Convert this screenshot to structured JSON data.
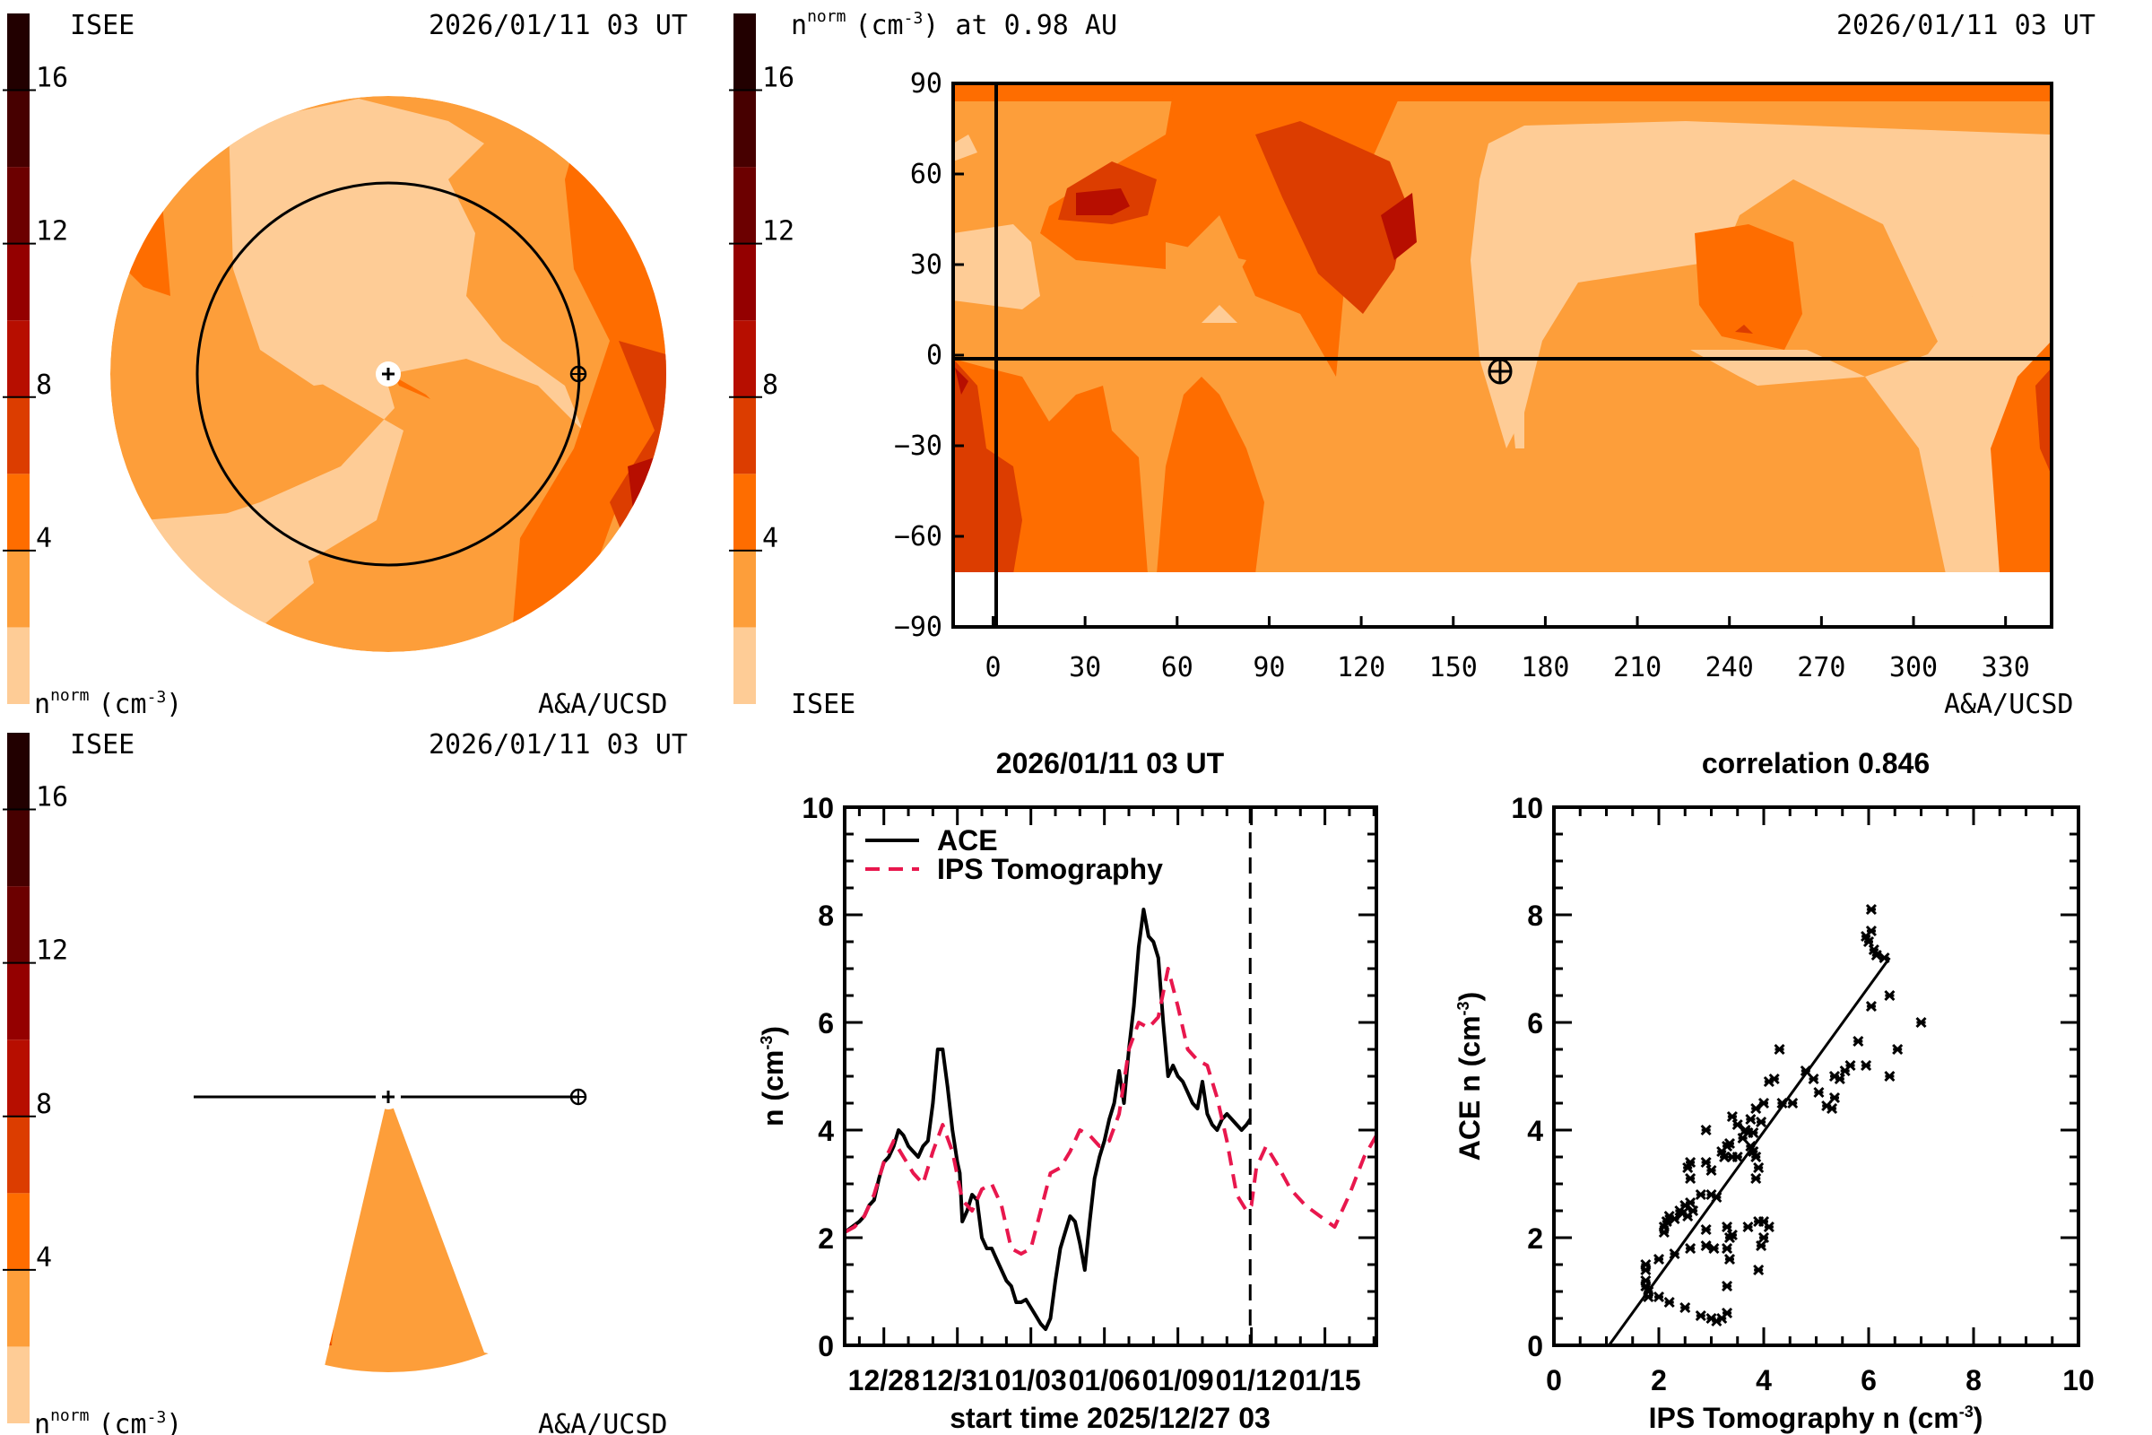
{
  "colorbar": {
    "levels": [
      0,
      2,
      4,
      6,
      8,
      10,
      12,
      14,
      16,
      18
    ],
    "colors": [
      "#fecc96",
      "#fd9e3a",
      "#fe6d00",
      "#dc3d00",
      "#b70e00",
      "#940000",
      "#6c0000",
      "#470000",
      "#220000"
    ],
    "tick_labels": [
      "4",
      "8",
      "12",
      "16"
    ],
    "tick_values": [
      4,
      8,
      12,
      16
    ],
    "range": [
      0,
      18
    ]
  },
  "panel_top_left": {
    "org": "ISEE",
    "timestamp": "2026/01/11 03 UT",
    "unit_label": "n",
    "unit_sup": "norm",
    "unit_rest": "(cm",
    "unit_exp": "-3",
    "credit": "A&A/UCSD"
  },
  "panel_top_right": {
    "title": "n",
    "title_sup": "norm",
    "title_rest": "(cm",
    "title_exp": "-3",
    "title_end": ") at 0.98 AU",
    "timestamp": "2026/01/11 03 UT",
    "org": "ISEE",
    "credit": "A&A/UCSD",
    "x_ticks": [
      "0",
      "30",
      "60",
      "90",
      "120",
      "150",
      "180",
      "210",
      "240",
      "270",
      "300",
      "330"
    ],
    "x_tick_values": [
      0,
      30,
      60,
      90,
      120,
      150,
      180,
      210,
      240,
      270,
      300,
      330
    ],
    "y_ticks": [
      "90",
      "60",
      "30",
      "0",
      "−30",
      "−60",
      "−90"
    ],
    "y_tick_values": [
      90,
      60,
      30,
      0,
      -30,
      -60,
      -90
    ],
    "x_range": [
      -13,
      345
    ],
    "y_range": [
      -90,
      90
    ],
    "data_lat_min": -70,
    "earth_position": {
      "lon": 165,
      "lat": -4
    }
  },
  "panel_bottom_left": {
    "org": "ISEE",
    "timestamp": "2026/01/11 03 UT",
    "unit_label": "n",
    "unit_sup": "norm",
    "unit_rest": "(cm",
    "unit_exp": "-3",
    "credit": "A&A/UCSD"
  },
  "chart_data": [
    {
      "type": "line",
      "title": "2026/01/11 03 UT",
      "xlabel": "start time 2025/12/27 03",
      "ylabel": "n (cm",
      "ylabel_exp": "-3",
      "ylabel_end": ")",
      "x_unit": "days since 12/28 00 UT",
      "x_range": [
        -1.6,
        20.1
      ],
      "ylim": [
        0,
        10
      ],
      "x_ticks": [
        "12/28",
        "12/31",
        "01/03",
        "01/06",
        "01/09",
        "01/12",
        "01/15"
      ],
      "x_tick_values": [
        0,
        3,
        6,
        9,
        12,
        15,
        18
      ],
      "y_ticks": [
        "0",
        "2",
        "4",
        "6",
        "8",
        "10"
      ],
      "y_tick_values": [
        0,
        2,
        4,
        6,
        8,
        10
      ],
      "current_time_marker": 14.95,
      "legend": [
        "ACE",
        "IPS Tomography"
      ],
      "legend_position": "top-left",
      "series": [
        {
          "name": "ACE",
          "color": "#000000",
          "style": "solid",
          "x": [
            -1.6,
            -1.3,
            -1.0,
            -0.8,
            -0.6,
            -0.4,
            -0.2,
            0.0,
            0.2,
            0.4,
            0.6,
            0.8,
            1.0,
            1.2,
            1.4,
            1.6,
            1.8,
            2.0,
            2.2,
            2.4,
            2.6,
            2.8,
            3.0,
            3.1,
            3.2,
            3.4,
            3.6,
            3.8,
            4.0,
            4.2,
            4.4,
            4.6,
            4.8,
            5.0,
            5.2,
            5.4,
            5.6,
            5.8,
            6.0,
            6.2,
            6.4,
            6.6,
            6.8,
            7.0,
            7.2,
            7.4,
            7.6,
            7.8,
            8.0,
            8.2,
            8.4,
            8.6,
            8.8,
            9.0,
            9.2,
            9.4,
            9.6,
            9.8,
            10.0,
            10.2,
            10.4,
            10.6,
            10.8,
            11.0,
            11.2,
            11.4,
            11.6,
            11.8,
            12.0,
            12.2,
            12.4,
            12.6,
            12.8,
            13.0,
            13.2,
            13.4,
            13.6,
            13.8,
            14.0,
            14.2,
            14.4,
            14.6,
            14.8,
            14.95
          ],
          "y": [
            2.1,
            2.2,
            2.3,
            2.4,
            2.6,
            2.7,
            3.1,
            3.4,
            3.5,
            3.7,
            4.0,
            3.9,
            3.7,
            3.6,
            3.5,
            3.7,
            3.8,
            4.5,
            5.5,
            5.5,
            4.8,
            4.0,
            3.4,
            3.2,
            2.3,
            2.5,
            2.8,
            2.7,
            2.0,
            1.8,
            1.8,
            1.6,
            1.4,
            1.2,
            1.1,
            0.8,
            0.8,
            0.85,
            0.7,
            0.55,
            0.4,
            0.3,
            0.5,
            1.2,
            1.8,
            2.1,
            2.4,
            2.3,
            1.9,
            1.4,
            2.3,
            3.1,
            3.5,
            3.8,
            4.2,
            4.5,
            5.1,
            4.5,
            5.5,
            6.3,
            7.4,
            8.1,
            7.6,
            7.5,
            7.2,
            6.0,
            5.0,
            5.2,
            5.0,
            4.9,
            4.7,
            4.5,
            4.4,
            4.9,
            4.3,
            4.1,
            4.0,
            4.2,
            4.3,
            4.2,
            4.1,
            4.0,
            4.1,
            4.2
          ]
        },
        {
          "name": "IPS Tomography",
          "color": "#e8174d",
          "style": "dashed",
          "x": [
            -1.6,
            -1.2,
            -0.8,
            -0.4,
            0.0,
            0.4,
            0.8,
            1.2,
            1.6,
            2.0,
            2.4,
            2.8,
            3.2,
            3.6,
            4.0,
            4.4,
            4.8,
            5.2,
            5.6,
            6.0,
            6.4,
            6.8,
            7.2,
            7.6,
            8.0,
            8.4,
            8.8,
            9.2,
            9.6,
            10.0,
            10.4,
            10.8,
            11.2,
            11.6,
            12.0,
            12.4,
            12.8,
            13.2,
            13.6,
            14.0,
            14.4,
            14.8,
            15.0,
            15.2,
            15.6,
            16.0,
            16.6,
            17.2,
            17.8,
            18.4,
            19.0,
            19.6,
            20.1
          ],
          "y": [
            2.1,
            2.2,
            2.4,
            2.8,
            3.4,
            3.8,
            3.5,
            3.2,
            3.0,
            3.6,
            4.1,
            3.6,
            2.7,
            2.5,
            2.9,
            3.0,
            2.6,
            1.8,
            1.7,
            1.8,
            2.5,
            3.2,
            3.3,
            3.6,
            4.0,
            3.9,
            3.7,
            3.8,
            4.3,
            5.5,
            6.0,
            5.9,
            6.1,
            7.0,
            6.3,
            5.5,
            5.3,
            5.2,
            4.6,
            3.8,
            2.8,
            2.5,
            2.6,
            3.3,
            3.7,
            3.4,
            2.9,
            2.6,
            2.4,
            2.2,
            2.8,
            3.5,
            3.9
          ]
        }
      ]
    },
    {
      "type": "scatter",
      "title": "correlation 0.846",
      "xlabel": "IPS Tomography n (cm",
      "xlabel_exp": "-3",
      "xlabel_end": ")",
      "ylabel": "ACE n (cm",
      "ylabel_exp": "-3",
      "ylabel_end": ")",
      "xlim": [
        0,
        10
      ],
      "ylim": [
        0,
        10
      ],
      "x_ticks": [
        "0",
        "2",
        "4",
        "6",
        "8",
        "10"
      ],
      "y_ticks": [
        "0",
        "2",
        "4",
        "6",
        "8",
        "10"
      ],
      "tick_values": [
        0,
        2,
        4,
        6,
        8,
        10
      ],
      "marker": "x",
      "fit_line": {
        "x": [
          1.05,
          6.4
        ],
        "y": [
          0.0,
          7.2
        ]
      },
      "points": [
        [
          1.75,
          1.5
        ],
        [
          1.75,
          1.4
        ],
        [
          1.75,
          1.2
        ],
        [
          1.75,
          1.1
        ],
        [
          1.8,
          1.0
        ],
        [
          1.8,
          0.9
        ],
        [
          2.0,
          0.9
        ],
        [
          2.2,
          0.8
        ],
        [
          2.5,
          0.7
        ],
        [
          2.8,
          0.55
        ],
        [
          3.0,
          0.5
        ],
        [
          3.1,
          0.45
        ],
        [
          3.2,
          0.5
        ],
        [
          3.3,
          0.6
        ],
        [
          2.0,
          1.6
        ],
        [
          2.3,
          1.7
        ],
        [
          2.6,
          1.8
        ],
        [
          2.9,
          1.85
        ],
        [
          3.05,
          1.8
        ],
        [
          3.3,
          1.8
        ],
        [
          3.35,
          2.0
        ],
        [
          3.4,
          2.05
        ],
        [
          3.3,
          2.2
        ],
        [
          3.35,
          1.6
        ],
        [
          3.3,
          1.1
        ],
        [
          2.9,
          2.15
        ],
        [
          3.7,
          2.2
        ],
        [
          3.9,
          2.3
        ],
        [
          4.0,
          2.3
        ],
        [
          4.1,
          2.2
        ],
        [
          4.0,
          2.0
        ],
        [
          3.95,
          1.85
        ],
        [
          3.9,
          1.4
        ],
        [
          2.1,
          2.1
        ],
        [
          2.1,
          2.2
        ],
        [
          2.15,
          2.3
        ],
        [
          2.2,
          2.4
        ],
        [
          2.4,
          2.5
        ],
        [
          2.5,
          2.6
        ],
        [
          2.6,
          2.65
        ],
        [
          2.65,
          2.5
        ],
        [
          2.55,
          2.4
        ],
        [
          2.45,
          2.45
        ],
        [
          2.3,
          2.35
        ],
        [
          2.8,
          2.8
        ],
        [
          3.0,
          2.8
        ],
        [
          3.1,
          2.75
        ],
        [
          2.6,
          3.1
        ],
        [
          2.55,
          3.3
        ],
        [
          2.6,
          3.4
        ],
        [
          2.9,
          3.4
        ],
        [
          3.0,
          3.25
        ],
        [
          3.2,
          3.6
        ],
        [
          3.25,
          3.5
        ],
        [
          3.3,
          3.7
        ],
        [
          3.4,
          3.5
        ],
        [
          3.35,
          3.75
        ],
        [
          3.5,
          3.5
        ],
        [
          3.6,
          3.85
        ],
        [
          3.65,
          4.0
        ],
        [
          3.7,
          3.95
        ],
        [
          3.75,
          3.7
        ],
        [
          3.8,
          3.6
        ],
        [
          3.85,
          3.5
        ],
        [
          3.9,
          3.3
        ],
        [
          3.85,
          3.1
        ],
        [
          3.8,
          3.95
        ],
        [
          3.75,
          4.2
        ],
        [
          3.85,
          4.4
        ],
        [
          3.95,
          4.15
        ],
        [
          4.0,
          4.5
        ],
        [
          4.1,
          4.9
        ],
        [
          4.2,
          4.95
        ],
        [
          4.3,
          5.5
        ],
        [
          4.35,
          4.5
        ],
        [
          4.55,
          4.5
        ],
        [
          4.8,
          5.1
        ],
        [
          4.95,
          4.95
        ],
        [
          5.05,
          4.7
        ],
        [
          5.2,
          4.45
        ],
        [
          5.3,
          4.4
        ],
        [
          5.35,
          4.6
        ],
        [
          5.35,
          5.0
        ],
        [
          5.45,
          4.95
        ],
        [
          5.55,
          5.1
        ],
        [
          5.65,
          5.2
        ],
        [
          5.8,
          5.65
        ],
        [
          5.95,
          5.2
        ],
        [
          6.05,
          6.3
        ],
        [
          6.4,
          6.5
        ],
        [
          6.55,
          5.5
        ],
        [
          6.4,
          5.0
        ],
        [
          7.0,
          6.0
        ],
        [
          2.9,
          4.0
        ],
        [
          3.4,
          4.25
        ],
        [
          3.5,
          4.1
        ],
        [
          5.95,
          7.6
        ],
        [
          6.0,
          7.5
        ],
        [
          6.05,
          7.7
        ],
        [
          6.1,
          7.35
        ],
        [
          6.15,
          7.25
        ],
        [
          6.3,
          7.2
        ],
        [
          6.05,
          8.1
        ]
      ]
    }
  ]
}
